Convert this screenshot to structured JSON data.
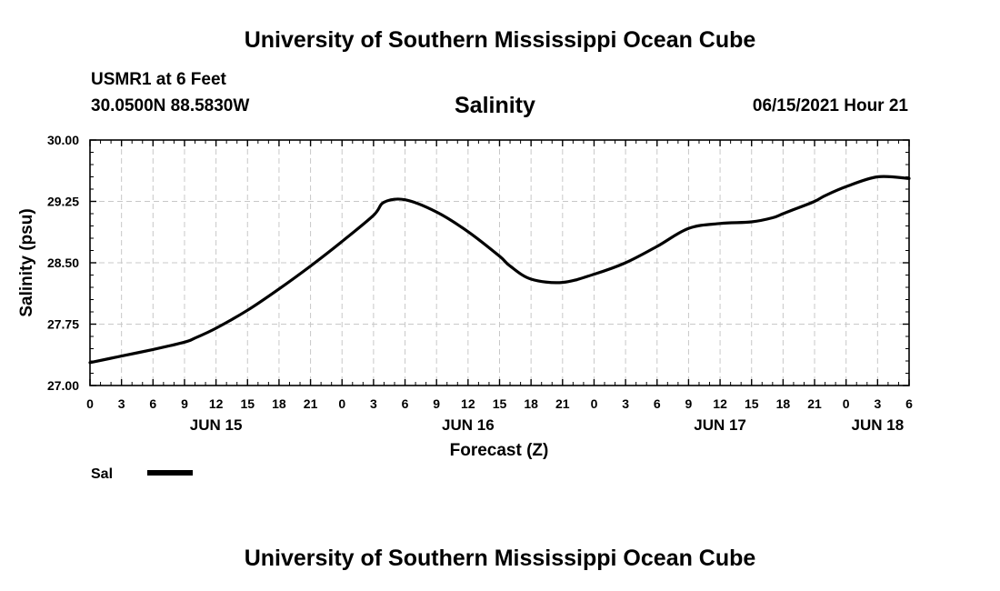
{
  "header": {
    "title": "University of Southern Mississippi Ocean Cube",
    "station": "USMR1 at 6 Feet",
    "coordinates": "30.0500N  88.5830W",
    "datetime": "06/15/2021 Hour 21"
  },
  "footer": {
    "title": "University of Southern Mississippi Ocean Cube"
  },
  "chart_data": {
    "type": "line",
    "title": "Salinity",
    "xlabel": "Forecast (Z)",
    "ylabel": "Salinity (psu)",
    "x_units": "hours since JUN 15 00Z",
    "xlim": [
      0,
      78
    ],
    "ylim": [
      27.0,
      30.0
    ],
    "grid": true,
    "yticks": [
      27.0,
      27.75,
      28.5,
      29.25,
      30.0
    ],
    "ytick_labels": [
      "27.00",
      "27.75",
      "28.50",
      "29.25",
      "30.00"
    ],
    "xtick_hours": [
      0,
      3,
      6,
      9,
      12,
      15,
      18,
      21,
      24,
      27,
      30,
      33,
      36,
      39,
      42,
      45,
      48,
      51,
      54,
      57,
      60,
      63,
      66,
      69,
      72,
      75,
      78
    ],
    "xtick_labels": [
      "0",
      "3",
      "6",
      "9",
      "12",
      "15",
      "18",
      "21",
      "0",
      "3",
      "6",
      "9",
      "12",
      "15",
      "18",
      "21",
      "0",
      "3",
      "6",
      "9",
      "12",
      "15",
      "18",
      "21",
      "0",
      "3",
      "6"
    ],
    "day_labels": [
      {
        "hour": 12,
        "label": "JUN 15"
      },
      {
        "hour": 36,
        "label": "JUN 16"
      },
      {
        "hour": 60,
        "label": "JUN 17"
      },
      {
        "hour": 75,
        "label": "JUN 18"
      }
    ],
    "legend": {
      "label": "Sal",
      "position": "bottom-left"
    },
    "series": [
      {
        "name": "Sal",
        "x": [
          0,
          3,
          6,
          9,
          10,
          12,
          15,
          18,
          21,
          24,
          27,
          28,
          30,
          33,
          36,
          39,
          40,
          42,
          45,
          48,
          51,
          54,
          57,
          60,
          63,
          65,
          66,
          67,
          69,
          70,
          72,
          75,
          78
        ],
        "values": [
          27.28,
          27.36,
          27.44,
          27.53,
          27.58,
          27.7,
          27.92,
          28.18,
          28.46,
          28.76,
          29.08,
          29.24,
          29.27,
          29.12,
          28.88,
          28.58,
          28.46,
          28.3,
          28.26,
          28.36,
          28.5,
          28.7,
          28.92,
          28.98,
          29.0,
          29.05,
          29.1,
          29.15,
          29.25,
          29.32,
          29.43,
          29.55,
          29.53
        ]
      }
    ]
  }
}
